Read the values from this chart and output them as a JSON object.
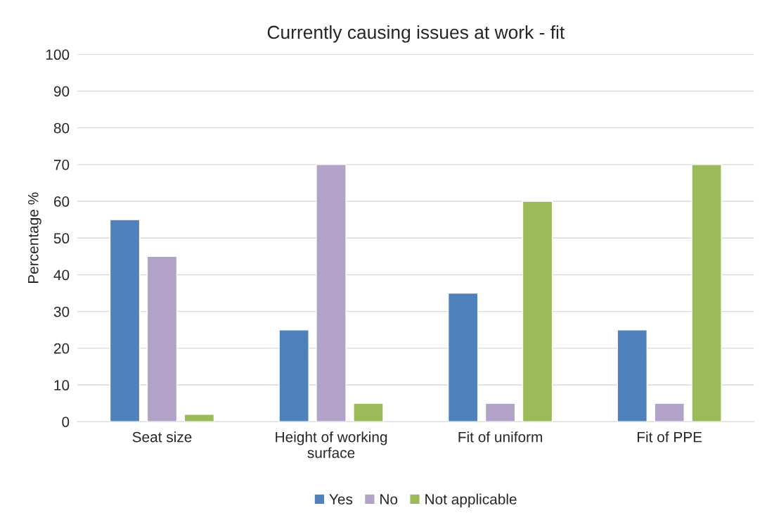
{
  "chart_data": {
    "type": "bar",
    "title": "Currently causing issues at work - fit",
    "ylabel": "Percentage %",
    "categories": [
      "Seat size",
      "Height of working\nsurface",
      "Fit of uniform",
      "Fit of PPE"
    ],
    "series": [
      {
        "name": "Yes",
        "color": "#4f81bd",
        "values": [
          55,
          25,
          35,
          25
        ]
      },
      {
        "name": "No",
        "color": "#b3a2c7",
        "values": [
          45,
          70,
          5,
          5
        ]
      },
      {
        "name": "Not applicable",
        "color": "#9bbb59",
        "values": [
          2,
          5,
          60,
          70
        ]
      }
    ],
    "ylim": [
      0,
      100
    ],
    "yticks": [
      0,
      10,
      20,
      30,
      40,
      50,
      60,
      70,
      80,
      90,
      100
    ],
    "grid": "y",
    "legend": "bottom"
  }
}
